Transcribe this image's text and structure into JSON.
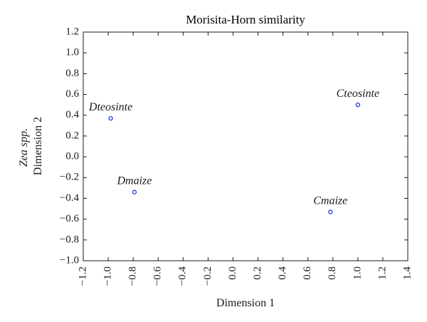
{
  "chart_data": {
    "type": "scatter",
    "title": "Morisita-Horn similarity",
    "xlabel": "Dimension 1",
    "ylabel_italic": "Zea spp.",
    "ylabel": "Dimension 2",
    "xlim": [
      -1.2,
      1.4
    ],
    "ylim": [
      -1.0,
      1.2
    ],
    "x_ticks": [
      "−1.2",
      "−1.0",
      "−0.8",
      "−0.6",
      "−0.4",
      "−0.2",
      "0.0",
      "0.2",
      "0.4",
      "0.6",
      "0.8",
      "1.0",
      "1.2",
      "1.4"
    ],
    "y_ticks": [
      "1.2",
      "1.0",
      "0.8",
      "0.6",
      "0.4",
      "0.2",
      "0.0",
      "−0.2",
      "−0.4",
      "−0.6",
      "−0.8",
      "−1.0"
    ],
    "grid": false,
    "marker_color": "#1f3bd6",
    "points": [
      {
        "label": "Dteosinte",
        "x": -0.98,
        "y": 0.37
      },
      {
        "label": "Dmaize",
        "x": -0.79,
        "y": -0.34
      },
      {
        "label": "Cteosinte",
        "x": 1.0,
        "y": 0.5
      },
      {
        "label": "Cmaize",
        "x": 0.78,
        "y": -0.53
      }
    ]
  }
}
